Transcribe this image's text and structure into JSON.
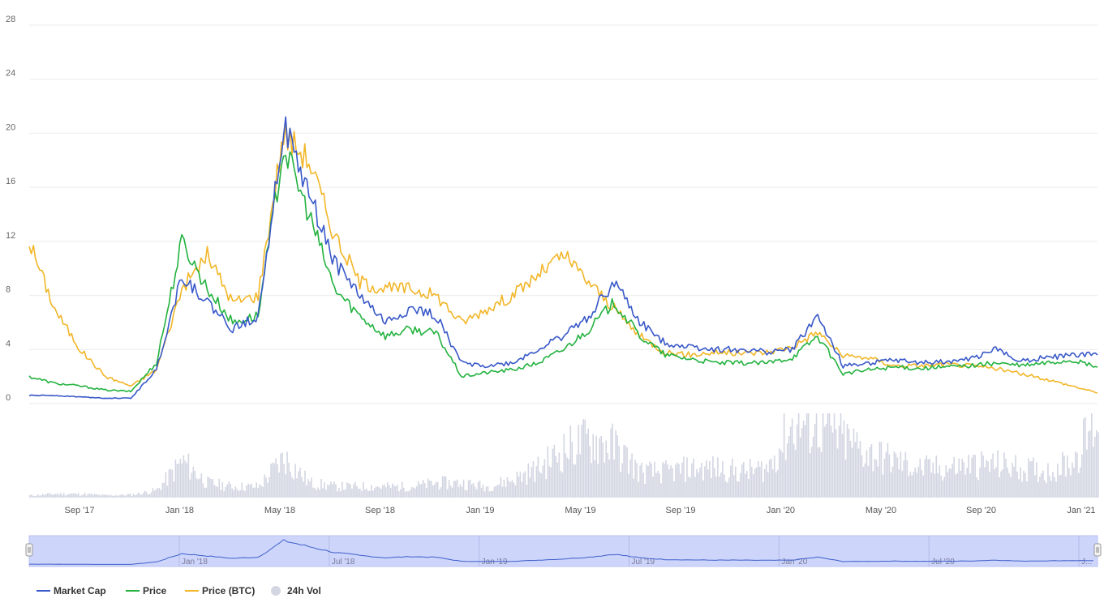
{
  "chart_data": {
    "type": "line",
    "yticks": [
      "0",
      "4",
      "8",
      "12",
      "16",
      "20",
      "24",
      "28"
    ],
    "ylim": [
      0,
      28
    ],
    "xticks": [
      "Sep '17",
      "Jan '18",
      "May '18",
      "Sep '18",
      "Jan '19",
      "May '19",
      "Sep '19",
      "Jan '20",
      "May '20",
      "Sep '20",
      "Jan '21"
    ],
    "navigator_ticks": [
      "Jan '18",
      "Jul '18",
      "Jan '19",
      "Jul '19",
      "Jan '20",
      "Jul '20",
      "J..."
    ],
    "grid": true,
    "legend_position": "bottom-left",
    "x": [
      "2017-07",
      "2017-08",
      "2017-09",
      "2017-10",
      "2017-11",
      "2017-12",
      "2018-01",
      "2018-02",
      "2018-03",
      "2018-04",
      "2018-05",
      "2018-06",
      "2018-07",
      "2018-08",
      "2018-09",
      "2018-10",
      "2018-11",
      "2018-12",
      "2019-01",
      "2019-02",
      "2019-03",
      "2019-04",
      "2019-05",
      "2019-06",
      "2019-07",
      "2019-08",
      "2019-09",
      "2019-10",
      "2019-11",
      "2019-12",
      "2020-01",
      "2020-02",
      "2020-03",
      "2020-04",
      "2020-05",
      "2020-06",
      "2020-07",
      "2020-08",
      "2020-09",
      "2020-10",
      "2020-11",
      "2020-12",
      "2021-01"
    ],
    "series": [
      {
        "name": "Market Cap",
        "color": "#3858c8",
        "values": [
          0.6,
          0.6,
          0.5,
          0.4,
          0.4,
          2.5,
          9.5,
          7.5,
          5.5,
          6.5,
          20.5,
          15.5,
          10.5,
          8.0,
          6.0,
          7.0,
          6.5,
          3.0,
          2.8,
          3.0,
          4.0,
          5.0,
          6.5,
          9.0,
          6.0,
          4.5,
          4.2,
          4.0,
          4.0,
          3.8,
          4.0,
          6.5,
          2.8,
          3.0,
          3.2,
          3.0,
          3.1,
          3.3,
          4.0,
          3.2,
          3.4,
          3.6,
          3.6
        ]
      },
      {
        "name": "Price",
        "color": "#23b23f",
        "values": [
          2.0,
          1.5,
          1.3,
          1.0,
          0.9,
          3.0,
          12.0,
          8.5,
          6.0,
          6.5,
          19.0,
          14.0,
          8.5,
          6.5,
          5.0,
          5.5,
          5.2,
          2.0,
          2.3,
          2.5,
          3.0,
          4.0,
          5.5,
          7.5,
          5.0,
          3.6,
          3.3,
          3.0,
          3.0,
          3.0,
          3.4,
          5.0,
          2.2,
          2.5,
          2.7,
          2.6,
          2.7,
          2.8,
          3.0,
          2.8,
          3.0,
          3.2,
          2.7
        ]
      },
      {
        "name": "Price (BTC)",
        "color": "#f2b628",
        "values": [
          12.0,
          7.0,
          4.0,
          2.0,
          1.3,
          2.5,
          8.5,
          11.0,
          7.5,
          8.0,
          20.0,
          18.0,
          12.5,
          9.0,
          8.5,
          8.5,
          8.0,
          6.0,
          7.0,
          8.0,
          9.5,
          11.0,
          9.0,
          7.0,
          5.0,
          3.8,
          3.6,
          3.8,
          3.7,
          3.8,
          4.2,
          5.3,
          3.5,
          3.4,
          2.8,
          2.8,
          2.9,
          2.8,
          2.6,
          2.2,
          1.8,
          1.3,
          0.8
        ]
      },
      {
        "name": "24h Vol",
        "color": "#d3d6e2",
        "values": [
          0.3,
          0.5,
          0.5,
          0.3,
          0.4,
          1.0,
          5.0,
          2.0,
          1.5,
          1.5,
          5.5,
          2.0,
          1.5,
          1.5,
          1.5,
          1.5,
          2.0,
          2.0,
          1.5,
          2.5,
          4.0,
          6.5,
          8.0,
          7.0,
          3.5,
          3.5,
          4.0,
          4.0,
          3.5,
          4.0,
          10.0,
          10.0,
          8.0,
          6.0,
          5.0,
          4.0,
          4.0,
          4.5,
          4.5,
          4.0,
          3.5,
          5.0,
          11.0
        ]
      }
    ],
    "legend": [
      {
        "label": "Market Cap",
        "color": "#3858c8",
        "symbol": "line"
      },
      {
        "label": "Price",
        "color": "#23b23f",
        "symbol": "line"
      },
      {
        "label": "Price (BTC)",
        "color": "#f2b628",
        "symbol": "line"
      },
      {
        "label": "24h Vol",
        "color": "#d3d6e2",
        "symbol": "circle"
      }
    ]
  }
}
